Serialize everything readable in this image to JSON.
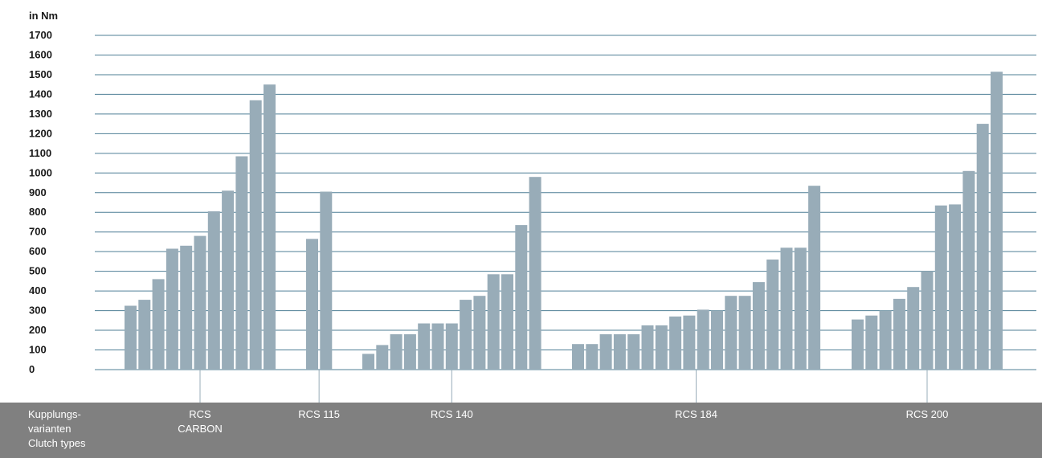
{
  "chart_data": {
    "type": "bar",
    "ylabel": "in Nm",
    "ylim": [
      0,
      1700
    ],
    "yticks": [
      0,
      100,
      200,
      300,
      400,
      500,
      600,
      700,
      800,
      900,
      1000,
      1100,
      1200,
      1300,
      1400,
      1500,
      1600,
      1700
    ],
    "grid": true,
    "bar_color": "#98acb8",
    "grid_color": "#4f7f96",
    "categories": [
      "RCS\nCARBON",
      "RCS 115",
      "RCS 140",
      "RCS 184",
      "RCS 200"
    ],
    "groups": [
      {
        "name": "RCS\nCARBON",
        "values": [
          325,
          355,
          460,
          615,
          630,
          680,
          805,
          910,
          1085,
          1370,
          1450
        ]
      },
      {
        "name": "RCS 115",
        "values": [
          665,
          905
        ]
      },
      {
        "name": "RCS 140",
        "values": [
          80,
          125,
          180,
          180,
          235,
          235,
          235,
          355,
          375,
          485,
          485,
          735,
          980
        ]
      },
      {
        "name": "RCS 184",
        "values": [
          130,
          130,
          180,
          180,
          180,
          225,
          225,
          270,
          275,
          305,
          300,
          375,
          375,
          445,
          560,
          620,
          620,
          935
        ]
      },
      {
        "name": "RCS 200",
        "values": [
          255,
          275,
          300,
          360,
          420,
          500,
          835,
          840,
          1010,
          1250,
          1515
        ]
      }
    ],
    "xlabel": "Kupplungs-\nvarianten\nClutch types"
  },
  "colors": {
    "band": "#808080",
    "band_text": "#ffffff"
  }
}
